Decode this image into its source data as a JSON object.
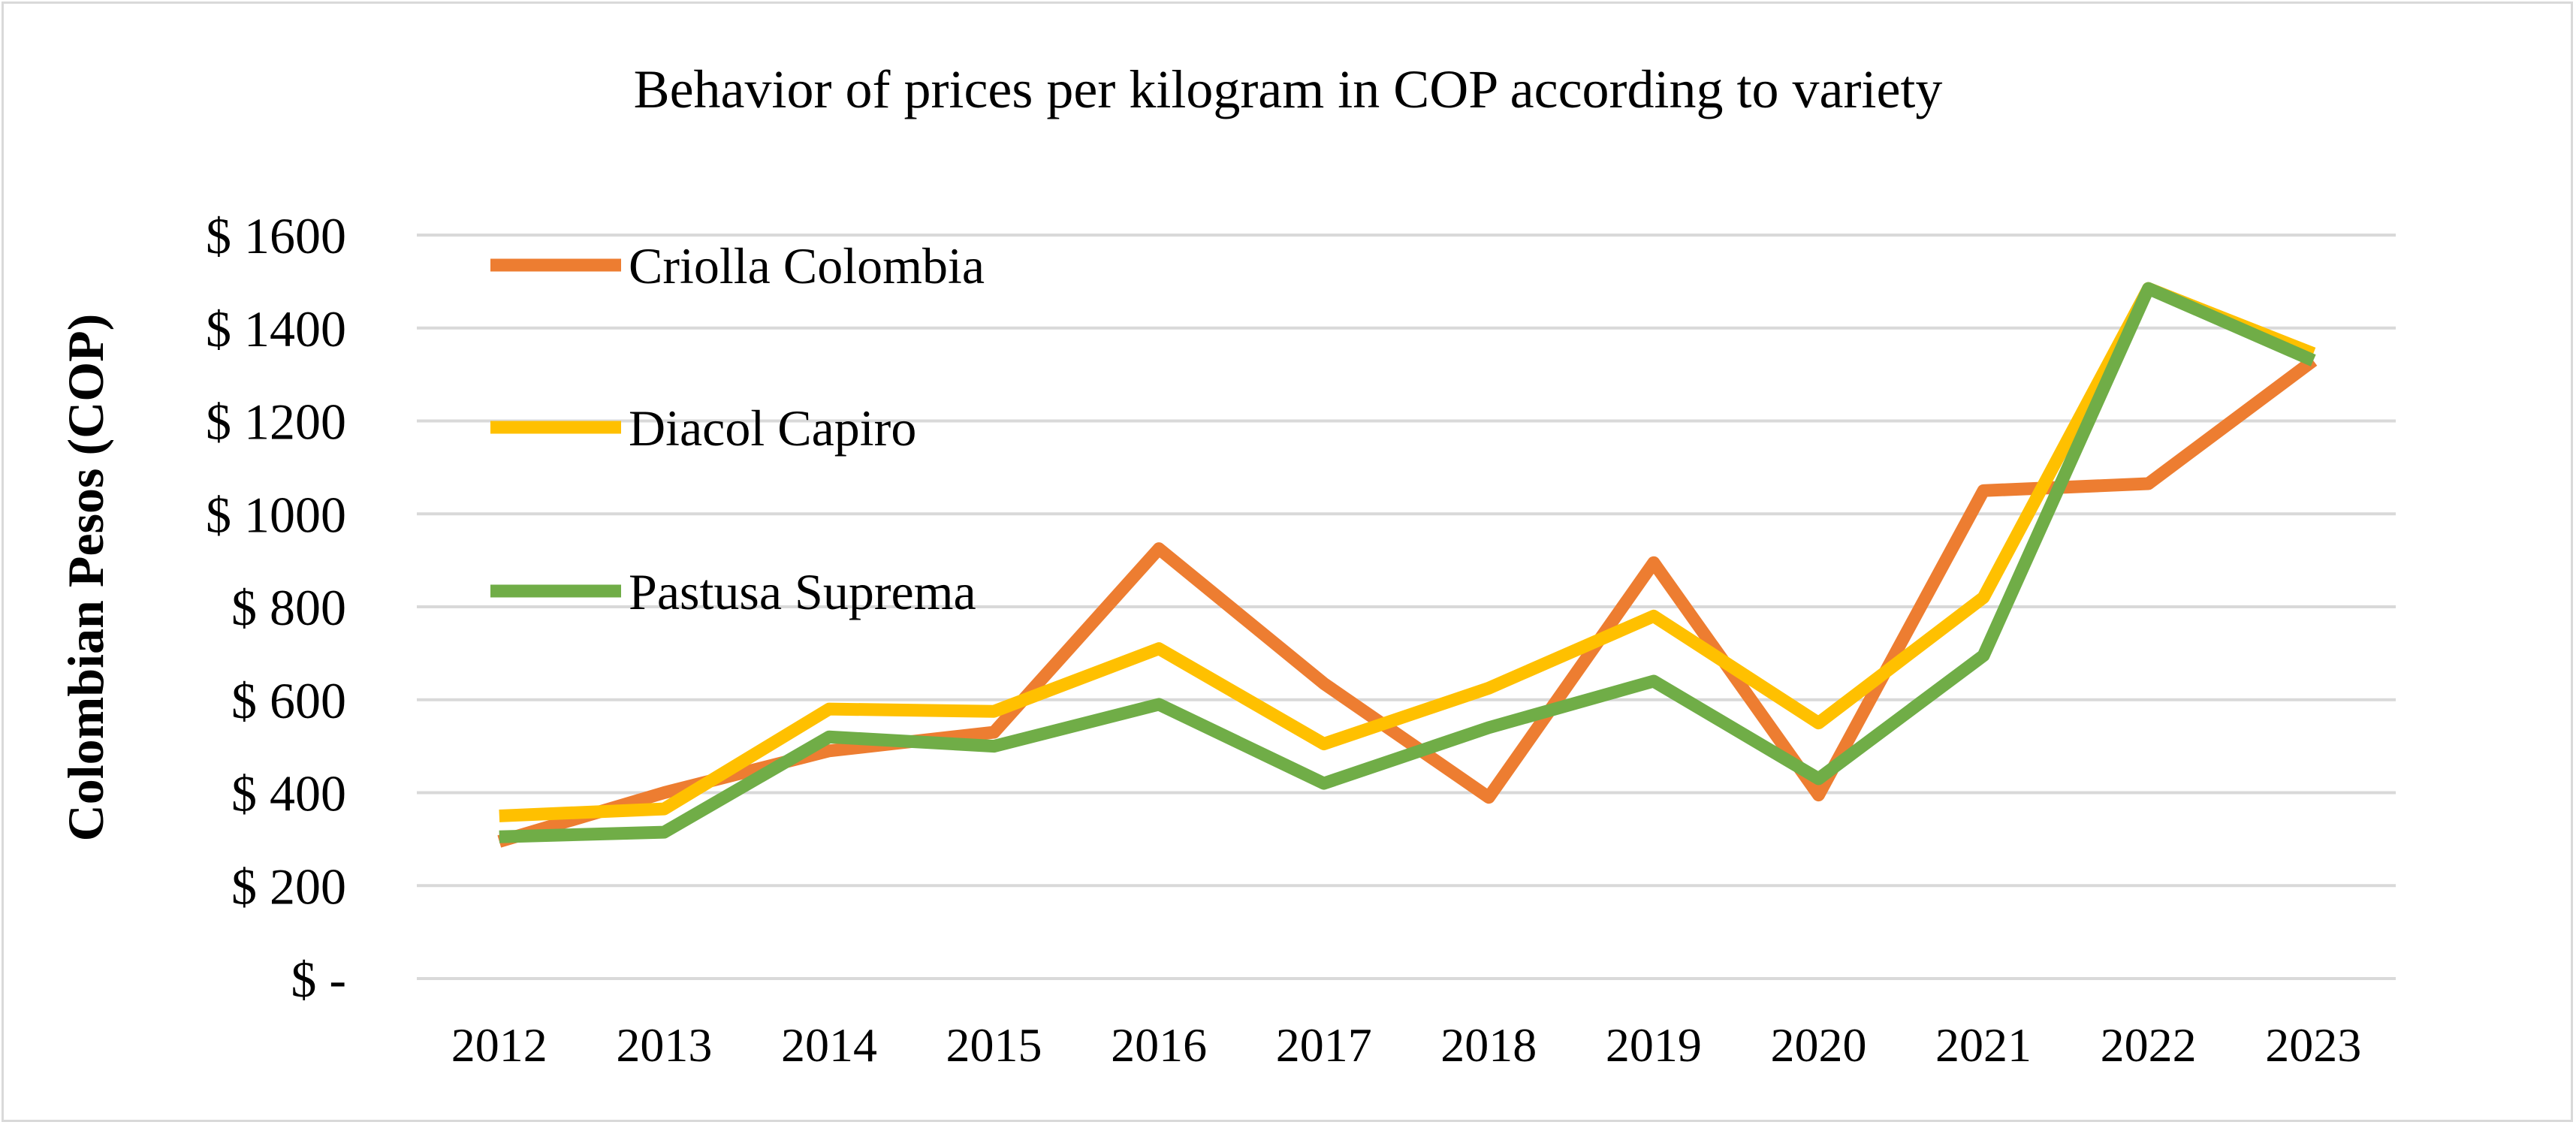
{
  "chart_data": {
    "type": "line",
    "title": "Behavior of prices per kilogram in COP according to variety",
    "xlabel": "",
    "ylabel": "Colombian Pesos (COP)",
    "ylim": [
      0,
      1600
    ],
    "y_ticks": [
      0,
      200,
      400,
      600,
      800,
      1000,
      1200,
      1400,
      1600
    ],
    "y_tick_labels": [
      "$ -",
      "$ 200",
      "$ 400",
      "$ 600",
      "$ 800",
      "$ 1000",
      "$ 1200",
      "$ 1400",
      "$ 1600"
    ],
    "grid": true,
    "legend_position": "top-left",
    "categories": [
      "2012",
      "2013",
      "2014",
      "2015",
      "2016",
      "2017",
      "2018",
      "2019",
      "2020",
      "2021",
      "2022",
      "2023"
    ],
    "series": [
      {
        "name": "Criolla Colombia",
        "color": "#ed7d31",
        "values": [
          295,
          400,
          490,
          530,
          925,
          635,
          390,
          895,
          395,
          1050,
          1065,
          1330
        ]
      },
      {
        "name": "Diacol Capiro",
        "color": "#ffc000",
        "values": [
          350,
          365,
          580,
          575,
          710,
          505,
          625,
          780,
          550,
          820,
          1485,
          1345
        ]
      },
      {
        "name": "Pastusa Suprema",
        "color": "#70ad47",
        "values": [
          305,
          315,
          520,
          500,
          590,
          420,
          540,
          640,
          430,
          695,
          1485,
          1330
        ]
      }
    ]
  }
}
